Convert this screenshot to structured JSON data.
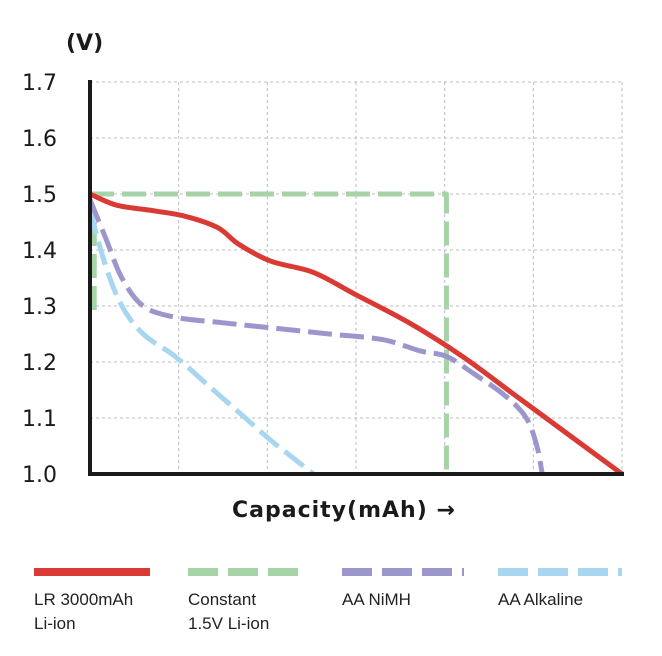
{
  "chart_data": {
    "type": "line",
    "ylabel": "(V)",
    "xlabel": "Capacity(mAh) →",
    "ylim": [
      1.0,
      1.7
    ],
    "yticks": [
      "1.7",
      "1.6",
      "1.5",
      "1.4",
      "1.3",
      "1.2",
      "1.1",
      "1.0"
    ],
    "xlim": [
      0,
      100
    ],
    "grid": true,
    "legend_position": "bottom",
    "series": [
      {
        "name": "LR 3000mAh Li-ion",
        "color": "#d93a33",
        "style": "solid",
        "x": [
          0,
          5,
          12,
          18,
          24,
          28,
          34,
          42,
          50,
          60,
          70,
          80,
          90,
          100
        ],
        "y": [
          1.5,
          1.48,
          1.47,
          1.46,
          1.44,
          1.41,
          1.38,
          1.36,
          1.32,
          1.27,
          1.21,
          1.14,
          1.07,
          1.0
        ]
      },
      {
        "name": "Constant 1.5V Li-ion",
        "color": "#a6d4a8",
        "style": "dashed",
        "x": [
          0,
          67,
          67
        ],
        "y": [
          1.5,
          1.5,
          1.0
        ],
        "drop_segment": {
          "x": [
            0.8,
            0.8
          ],
          "y": [
            1.45,
            1.29
          ]
        }
      },
      {
        "name": "AA NiMH",
        "color": "#9b97cc",
        "style": "dashed",
        "x": [
          0,
          3,
          6,
          10,
          16,
          25,
          35,
          45,
          55,
          62,
          67,
          72,
          78,
          82,
          84,
          85
        ],
        "y": [
          1.49,
          1.42,
          1.35,
          1.3,
          1.28,
          1.27,
          1.26,
          1.25,
          1.24,
          1.22,
          1.21,
          1.18,
          1.14,
          1.1,
          1.05,
          1.0
        ]
      },
      {
        "name": "AA Alkaline",
        "color": "#a8d6f0",
        "style": "dashed",
        "x": [
          0,
          3,
          6,
          10,
          16,
          22,
          28,
          34,
          38,
          42
        ],
        "y": [
          1.47,
          1.37,
          1.3,
          1.25,
          1.21,
          1.16,
          1.11,
          1.06,
          1.03,
          1.0
        ]
      }
    ]
  }
}
